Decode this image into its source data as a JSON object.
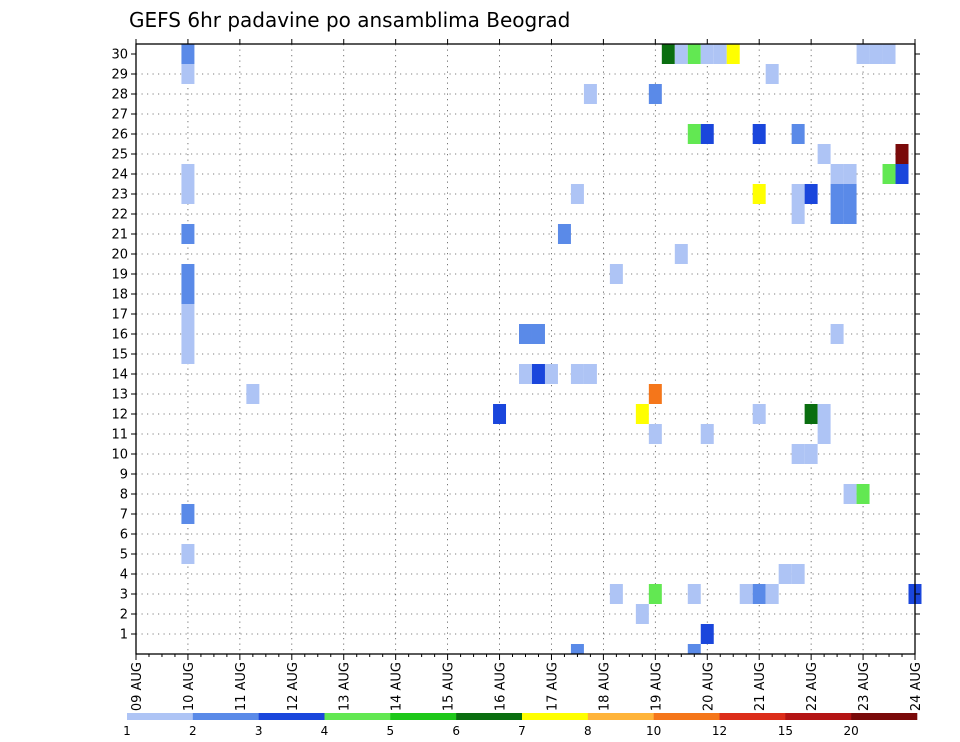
{
  "chart_data": {
    "type": "heatmap",
    "title": "GEFS 6hr padavine po ansamblima Beograd",
    "xlabel": "",
    "ylabel": "",
    "x_ticks": [
      "09 AUG",
      "10 AUG",
      "11 AUG",
      "12 AUG",
      "13 AUG",
      "14 AUG",
      "15 AUG",
      "16 AUG",
      "17 AUG",
      "18 AUG",
      "19 AUG",
      "20 AUG",
      "21 AUG",
      "22 AUG",
      "23 AUG",
      "24 AUG"
    ],
    "x_step_hours": 6,
    "y_ticks": [
      "1",
      "2",
      "3",
      "4",
      "5",
      "6",
      "7",
      "8",
      "9",
      "10",
      "11",
      "12",
      "13",
      "14",
      "15",
      "16",
      "17",
      "18",
      "19",
      "20",
      "21",
      "22",
      "23",
      "24",
      "25",
      "26",
      "27",
      "28",
      "29",
      "30"
    ],
    "grid": true,
    "colorbar": {
      "labels": [
        "1",
        "2",
        "3",
        "4",
        "5",
        "6",
        "7",
        "8",
        "10",
        "12",
        "15",
        "20"
      ],
      "colors": [
        "#aec4f5",
        "#5a8ae8",
        "#1a46dc",
        "#62e852",
        "#1ec81a",
        "#0a6e10",
        "#ffff00",
        "#ffb43a",
        "#f5761a",
        "#dc2d1a",
        "#b41414",
        "#7a0a0a"
      ]
    },
    "cells": [
      {
        "t": "10 AUG 00Z",
        "m": 30,
        "c": 1
      },
      {
        "t": "10 AUG 00Z",
        "m": 29,
        "c": 0
      },
      {
        "t": "10 AUG 00Z",
        "m": 24,
        "c": 0
      },
      {
        "t": "10 AUG 00Z",
        "m": 23,
        "c": 0
      },
      {
        "t": "10 AUG 00Z",
        "m": 21,
        "c": 1
      },
      {
        "t": "10 AUG 00Z",
        "m": 19,
        "c": 1
      },
      {
        "t": "10 AUG 00Z",
        "m": 18,
        "c": 1
      },
      {
        "t": "10 AUG 00Z",
        "m": 17,
        "c": 0
      },
      {
        "t": "10 AUG 00Z",
        "m": 16,
        "c": 0
      },
      {
        "t": "10 AUG 00Z",
        "m": 15,
        "c": 0
      },
      {
        "t": "10 AUG 00Z",
        "m": 7,
        "c": 1
      },
      {
        "t": "10 AUG 00Z",
        "m": 5,
        "c": 0
      },
      {
        "t": "11 AUG 06Z",
        "m": 13,
        "c": 0
      },
      {
        "t": "16 AUG 00Z",
        "m": 12,
        "c": 2
      },
      {
        "t": "16 AUG 12Z",
        "m": 16,
        "c": 1
      },
      {
        "t": "16 AUG 18Z",
        "m": 16,
        "c": 1
      },
      {
        "t": "16 AUG 12Z",
        "m": 14,
        "c": 0
      },
      {
        "t": "16 AUG 18Z",
        "m": 14,
        "c": 2
      },
      {
        "t": "17 AUG 00Z",
        "m": 14,
        "c": 0
      },
      {
        "t": "17 AUG 06Z",
        "m": 21,
        "c": 1
      },
      {
        "t": "17 AUG 12Z",
        "m": 14,
        "c": 0
      },
      {
        "t": "17 AUG 18Z",
        "m": 14,
        "c": 0
      },
      {
        "t": "17 AUG 12Z",
        "m": 23,
        "c": 0
      },
      {
        "t": "17 AUG 12Z",
        "m": 0,
        "c": 1
      },
      {
        "t": "17 AUG 18Z",
        "m": 28,
        "c": 0
      },
      {
        "t": "18 AUG 06Z",
        "m": 19,
        "c": 0
      },
      {
        "t": "18 AUG 06Z",
        "m": 3,
        "c": 0
      },
      {
        "t": "18 AUG 18Z",
        "m": 12,
        "c": 6
      },
      {
        "t": "18 AUG 18Z",
        "m": 2,
        "c": 0
      },
      {
        "t": "19 AUG 00Z",
        "m": 28,
        "c": 1
      },
      {
        "t": "19 AUG 00Z",
        "m": 13,
        "c": 8
      },
      {
        "t": "19 AUG 00Z",
        "m": 11,
        "c": 0
      },
      {
        "t": "19 AUG 00Z",
        "m": 3,
        "c": 3
      },
      {
        "t": "19 AUG 12Z",
        "m": 20,
        "c": 0
      },
      {
        "t": "19 AUG 06Z",
        "m": 30,
        "c": 5
      },
      {
        "t": "19 AUG 12Z",
        "m": 30,
        "c": 0
      },
      {
        "t": "19 AUG 18Z",
        "m": 30,
        "c": 3
      },
      {
        "t": "20 AUG 00Z",
        "m": 30,
        "c": 0
      },
      {
        "t": "20 AUG 06Z",
        "m": 30,
        "c": 0
      },
      {
        "t": "20 AUG 12Z",
        "m": 30,
        "c": 6
      },
      {
        "t": "19 AUG 18Z",
        "m": 26,
        "c": 3
      },
      {
        "t": "20 AUG 00Z",
        "m": 26,
        "c": 2
      },
      {
        "t": "19 AUG 18Z",
        "m": 3,
        "c": 0
      },
      {
        "t": "19 AUG 18Z",
        "m": 0,
        "c": 1
      },
      {
        "t": "20 AUG 00Z",
        "m": 11,
        "c": 0
      },
      {
        "t": "20 AUG 00Z",
        "m": 1,
        "c": 2
      },
      {
        "t": "20 AUG 18Z",
        "m": 3,
        "c": 0
      },
      {
        "t": "21 AUG 00Z",
        "m": 26,
        "c": 2
      },
      {
        "t": "21 AUG 00Z",
        "m": 23,
        "c": 6
      },
      {
        "t": "21 AUG 00Z",
        "m": 12,
        "c": 0
      },
      {
        "t": "21 AUG 00Z",
        "m": 3,
        "c": 1
      },
      {
        "t": "21 AUG 06Z",
        "m": 29,
        "c": 0
      },
      {
        "t": "21 AUG 06Z",
        "m": 3,
        "c": 0
      },
      {
        "t": "21 AUG 12Z",
        "m": 4,
        "c": 0
      },
      {
        "t": "21 AUG 18Z",
        "m": 4,
        "c": 0
      },
      {
        "t": "21 AUG 18Z",
        "m": 26,
        "c": 1
      },
      {
        "t": "21 AUG 18Z",
        "m": 23,
        "c": 0
      },
      {
        "t": "21 AUG 18Z",
        "m": 22,
        "c": 0
      },
      {
        "t": "21 AUG 18Z",
        "m": 10,
        "c": 0
      },
      {
        "t": "22 AUG 00Z",
        "m": 23,
        "c": 2
      },
      {
        "t": "22 AUG 00Z",
        "m": 12,
        "c": 5
      },
      {
        "t": "22 AUG 00Z",
        "m": 10,
        "c": 0
      },
      {
        "t": "22 AUG 06Z",
        "m": 25,
        "c": 0
      },
      {
        "t": "22 AUG 06Z",
        "m": 12,
        "c": 0
      },
      {
        "t": "22 AUG 06Z",
        "m": 11,
        "c": 0
      },
      {
        "t": "22 AUG 12Z",
        "m": 24,
        "c": 0
      },
      {
        "t": "22 AUG 18Z",
        "m": 24,
        "c": 0
      },
      {
        "t": "22 AUG 12Z",
        "m": 23,
        "c": 1
      },
      {
        "t": "22 AUG 18Z",
        "m": 23,
        "c": 1
      },
      {
        "t": "22 AUG 12Z",
        "m": 22,
        "c": 1
      },
      {
        "t": "22 AUG 18Z",
        "m": 22,
        "c": 1
      },
      {
        "t": "22 AUG 12Z",
        "m": 16,
        "c": 0
      },
      {
        "t": "22 AUG 18Z",
        "m": 8,
        "c": 0
      },
      {
        "t": "23 AUG 00Z",
        "m": 8,
        "c": 3
      },
      {
        "t": "23 AUG 00Z",
        "m": 30,
        "c": 0
      },
      {
        "t": "23 AUG 06Z",
        "m": 30,
        "c": 0
      },
      {
        "t": "23 AUG 12Z",
        "m": 30,
        "c": 0
      },
      {
        "t": "23 AUG 12Z",
        "m": 24,
        "c": 3
      },
      {
        "t": "23 AUG 18Z",
        "m": 24,
        "c": 2
      },
      {
        "t": "23 AUG 18Z",
        "m": 25,
        "c": 11
      },
      {
        "t": "24 AUG 00Z",
        "m": 3,
        "c": 2
      }
    ]
  }
}
